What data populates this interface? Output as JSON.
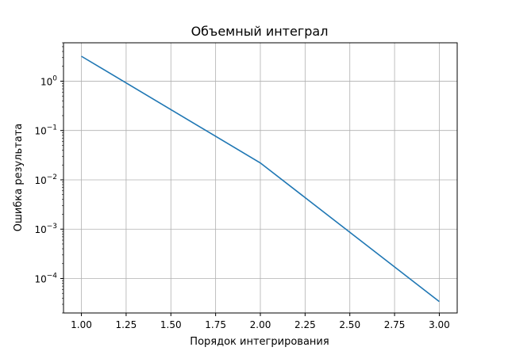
{
  "chart_data": {
    "type": "line",
    "title": "Объемный интеграл",
    "xlabel": "Порядок интегрирования",
    "ylabel": "Ошибка результата",
    "xscale": "linear",
    "yscale": "log",
    "xlim": [
      0.9,
      3.1
    ],
    "ylim": [
      2e-05,
      6
    ],
    "grid": true,
    "xticks": [
      1.0,
      1.25,
      1.5,
      1.75,
      2.0,
      2.25,
      2.5,
      2.75,
      3.0
    ],
    "xtick_labels": [
      "1.00",
      "1.25",
      "1.50",
      "1.75",
      "2.00",
      "2.25",
      "2.50",
      "2.75",
      "3.00"
    ],
    "yticks": [
      {
        "value": 1,
        "base": "10",
        "exp": "0"
      },
      {
        "value": 0.1,
        "base": "10",
        "exp": "−1"
      },
      {
        "value": 0.01,
        "base": "10",
        "exp": "−2"
      },
      {
        "value": 0.001,
        "base": "10",
        "exp": "−3"
      },
      {
        "value": 0.0001,
        "base": "10",
        "exp": "−4"
      }
    ],
    "series": [
      {
        "color": "#1f77b4",
        "x": [
          1.0,
          2.0,
          3.0
        ],
        "y": [
          3.2,
          0.022,
          3.4e-05
        ]
      }
    ]
  }
}
